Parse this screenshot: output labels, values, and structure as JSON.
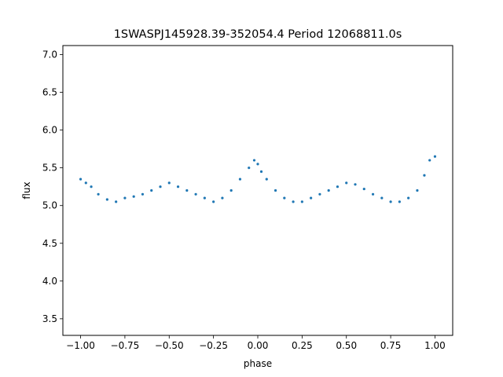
{
  "chart_data": {
    "type": "scatter",
    "title": "1SWASPJ145928.39-352054.4 Period 12068811.0s",
    "xlabel": "phase",
    "ylabel": "flux",
    "xlim": [
      -1.1,
      1.1
    ],
    "ylim": [
      3.28,
      7.12
    ],
    "grid": false,
    "point_color": "#1f77b4",
    "x_ticks": [
      -1.0,
      -0.75,
      -0.5,
      -0.25,
      0.0,
      0.25,
      0.5,
      0.75,
      1.0
    ],
    "x_tick_labels": [
      "−1.00",
      "−0.75",
      "−0.50",
      "−0.25",
      "0.00",
      "0.25",
      "0.50",
      "0.75",
      "1.00"
    ],
    "y_ticks": [
      3.5,
      4.0,
      4.5,
      5.0,
      5.5,
      6.0,
      6.5,
      7.0
    ],
    "y_tick_labels": [
      "3.5",
      "4.0",
      "4.5",
      "5.0",
      "5.5",
      "6.0",
      "6.5",
      "7.0"
    ],
    "series": [
      {
        "x": [
          -1.0,
          -0.97,
          -0.94,
          -0.9,
          -0.85,
          -0.8,
          -0.75,
          -0.7,
          -0.65,
          -0.6,
          -0.55,
          -0.5,
          -0.45,
          -0.4,
          -0.35,
          -0.3,
          -0.25,
          -0.2,
          -0.15,
          -0.1,
          -0.05,
          -0.02,
          0.0,
          0.02,
          0.05,
          0.1,
          0.15,
          0.2,
          0.25,
          0.3,
          0.35,
          0.4,
          0.45,
          0.5,
          0.55,
          0.6,
          0.65,
          0.7,
          0.75,
          0.8,
          0.85,
          0.9,
          0.94,
          0.97,
          1.0
        ],
        "y": [
          5.35,
          5.3,
          5.25,
          5.15,
          5.08,
          5.05,
          5.1,
          5.12,
          5.15,
          5.2,
          5.25,
          5.3,
          5.25,
          5.2,
          5.15,
          5.1,
          5.05,
          5.1,
          5.2,
          5.35,
          5.5,
          5.6,
          5.55,
          5.45,
          5.35,
          5.2,
          5.1,
          5.05,
          5.05,
          5.1,
          5.15,
          5.2,
          5.25,
          5.3,
          5.28,
          5.22,
          5.15,
          5.1,
          5.05,
          5.05,
          5.1,
          5.2,
          5.4,
          5.6,
          5.65
        ]
      }
    ]
  }
}
